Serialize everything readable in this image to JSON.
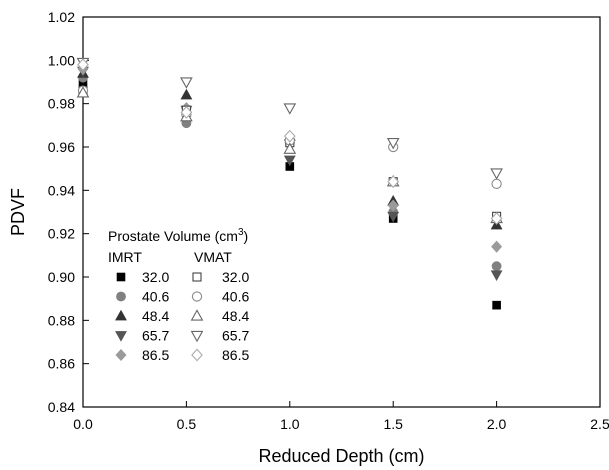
{
  "chart_data": {
    "type": "scatter",
    "title": "",
    "xlabel": "Reduced Depth (cm)",
    "ylabel": "PDVF",
    "xlim": [
      0.0,
      2.5
    ],
    "ylim": [
      0.84,
      1.02
    ],
    "x_ticks": [
      "0.0",
      "0.5",
      "1.0",
      "1.5",
      "2.0",
      "2.5"
    ],
    "y_ticks": [
      "0.84",
      "0.86",
      "0.88",
      "0.90",
      "0.92",
      "0.94",
      "0.96",
      "0.98",
      "1.00",
      "1.02"
    ],
    "grid": false,
    "legend": {
      "placement": "bottom-left",
      "title": "Prostate Volume (cm",
      "title_sup": "3",
      "title_end": ")",
      "group_labels": [
        "IMRT",
        "VMAT"
      ]
    },
    "x": [
      0.0,
      0.5,
      1.0,
      1.5,
      2.0
    ],
    "series": [
      {
        "name": "32.0",
        "group": "IMRT",
        "marker": "square",
        "filled": true,
        "color": "#000000",
        "values": [
          0.989,
          0.976,
          0.951,
          0.927,
          0.887
        ]
      },
      {
        "name": "40.6",
        "group": "IMRT",
        "marker": "circle",
        "filled": true,
        "color": "#808080",
        "values": [
          0.992,
          0.971,
          0.962,
          0.93,
          0.905
        ]
      },
      {
        "name": "48.4",
        "group": "IMRT",
        "marker": "triangle-up",
        "filled": true,
        "color": "#333333",
        "values": [
          0.994,
          0.984,
          0.965,
          0.935,
          0.924
        ]
      },
      {
        "name": "65.7",
        "group": "IMRT",
        "marker": "triangle-down",
        "filled": true,
        "color": "#555555",
        "values": [
          0.995,
          0.977,
          0.954,
          0.928,
          0.901
        ]
      },
      {
        "name": "86.5",
        "group": "IMRT",
        "marker": "diamond",
        "filled": true,
        "color": "#9a9a9a",
        "values": [
          0.996,
          0.978,
          0.962,
          0.933,
          0.914
        ]
      },
      {
        "name": "32.0",
        "group": "VMAT",
        "marker": "square",
        "filled": false,
        "color": "#444444",
        "values": [
          0.986,
          0.977,
          0.962,
          0.944,
          0.928
        ]
      },
      {
        "name": "40.6",
        "group": "VMAT",
        "marker": "circle",
        "filled": false,
        "color": "#8a8a8a",
        "values": [
          0.986,
          0.975,
          0.963,
          0.96,
          0.943
        ]
      },
      {
        "name": "48.4",
        "group": "VMAT",
        "marker": "triangle-up",
        "filled": false,
        "color": "#666666",
        "values": [
          0.985,
          0.974,
          0.959,
          0.944,
          0.927
        ]
      },
      {
        "name": "65.7",
        "group": "VMAT",
        "marker": "triangle-down",
        "filled": false,
        "color": "#666666",
        "values": [
          0.999,
          0.99,
          0.978,
          0.962,
          0.948
        ]
      },
      {
        "name": "86.5",
        "group": "VMAT",
        "marker": "diamond",
        "filled": false,
        "color": "#aaaaaa",
        "values": [
          0.998,
          0.976,
          0.965,
          0.944,
          0.927
        ]
      }
    ]
  }
}
